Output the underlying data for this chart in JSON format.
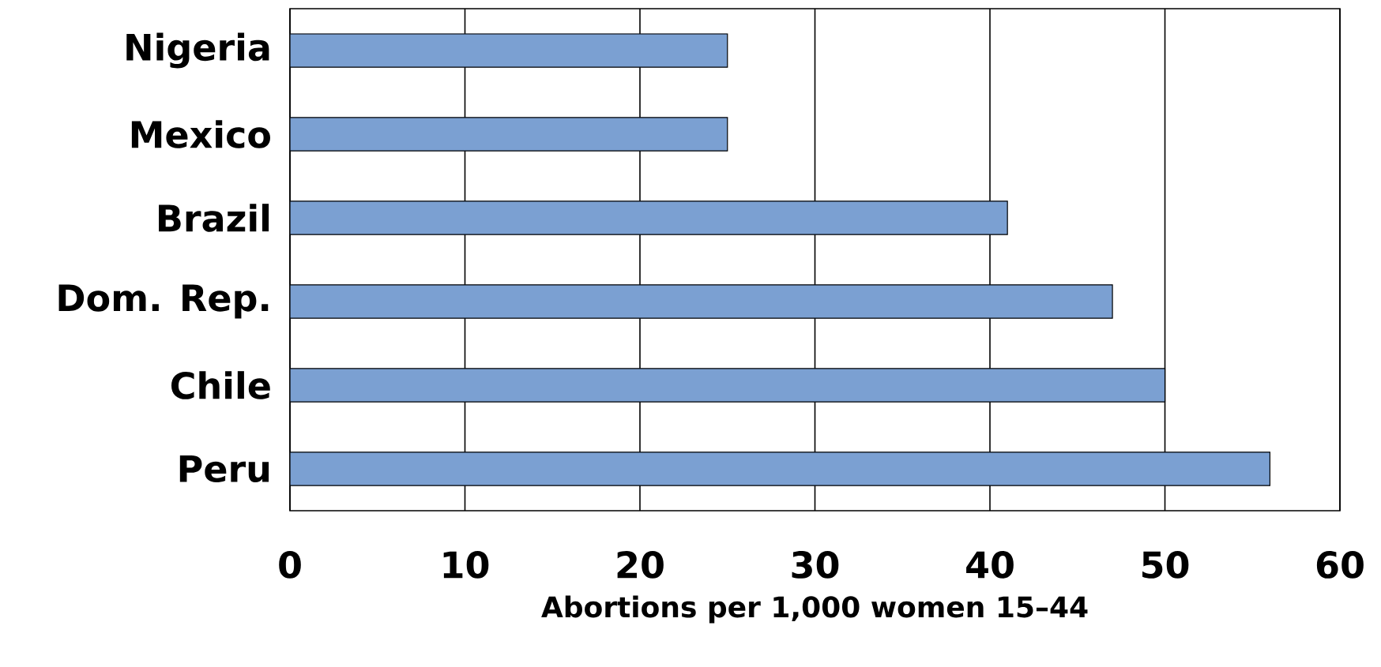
{
  "chart_data": {
    "type": "bar",
    "orientation": "horizontal",
    "xlabel": "Abortions per 1,000 women 15–44",
    "categories": [
      "Nigeria",
      "Mexico",
      "Brazil",
      "Dom. Rep.",
      "Chile",
      "Peru"
    ],
    "values": [
      25,
      25,
      41,
      47,
      50,
      56
    ],
    "color": "#7ba0d2",
    "xlim": [
      0,
      60
    ],
    "xticks": [
      0,
      10,
      20,
      30,
      40,
      50,
      60
    ],
    "grid": "x"
  }
}
